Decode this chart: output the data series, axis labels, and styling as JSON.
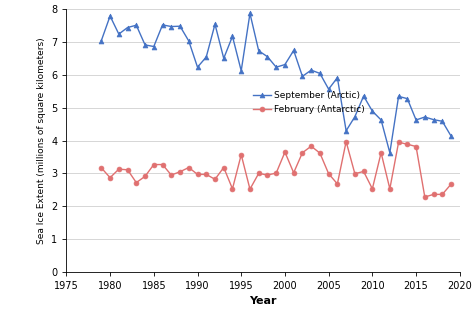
{
  "arctic_years": [
    1979,
    1980,
    1981,
    1982,
    1983,
    1984,
    1985,
    1986,
    1987,
    1988,
    1989,
    1990,
    1991,
    1992,
    1993,
    1994,
    1995,
    1996,
    1997,
    1998,
    1999,
    2000,
    2001,
    2002,
    2003,
    2004,
    2005,
    2006,
    2007,
    2008,
    2009,
    2010,
    2011,
    2012,
    2013,
    2014,
    2015,
    2016,
    2017,
    2018,
    2019
  ],
  "arctic_values": [
    7.05,
    7.8,
    7.25,
    7.45,
    7.52,
    6.92,
    6.87,
    7.53,
    7.48,
    7.49,
    7.04,
    6.24,
    6.55,
    7.55,
    6.51,
    7.18,
    6.13,
    7.88,
    6.74,
    6.56,
    6.24,
    6.32,
    6.75,
    5.96,
    6.15,
    6.05,
    5.57,
    5.92,
    4.3,
    4.73,
    5.36,
    4.9,
    4.63,
    3.63,
    5.35,
    5.28,
    4.63,
    4.72,
    4.64,
    4.59,
    4.14
  ],
  "antarctic_years": [
    1979,
    1980,
    1981,
    1982,
    1983,
    1984,
    1985,
    1986,
    1987,
    1988,
    1989,
    1990,
    1991,
    1992,
    1993,
    1994,
    1995,
    1996,
    1997,
    1998,
    1999,
    2000,
    2001,
    2002,
    2003,
    2004,
    2005,
    2006,
    2007,
    2008,
    2009,
    2010,
    2011,
    2012,
    2013,
    2014,
    2015,
    2016,
    2017,
    2018,
    2019
  ],
  "antarctic_values": [
    3.17,
    2.87,
    3.13,
    3.11,
    2.72,
    2.91,
    3.27,
    3.27,
    2.95,
    3.05,
    3.18,
    2.97,
    2.97,
    2.82,
    3.18,
    2.53,
    3.57,
    2.52,
    3.0,
    2.95,
    3.01,
    3.65,
    3.02,
    3.63,
    3.83,
    3.62,
    2.99,
    2.68,
    3.97,
    2.99,
    3.06,
    2.53,
    3.63,
    2.53,
    3.95,
    3.89,
    3.82,
    2.28,
    2.36,
    2.36,
    2.67
  ],
  "arctic_color": "#4472c4",
  "antarctic_color": "#e07070",
  "arctic_label": "September (Arctic)",
  "antarctic_label": "February (Antarctic)",
  "xlabel": "Year",
  "ylabel": "Sea Ice Extent (millions of square kilometers)",
  "xlim": [
    1975,
    2020
  ],
  "ylim": [
    0,
    8
  ],
  "xticks": [
    1975,
    1980,
    1985,
    1990,
    1995,
    2000,
    2005,
    2010,
    2015,
    2020
  ],
  "yticks": [
    0,
    1,
    2,
    3,
    4,
    5,
    6,
    7,
    8
  ],
  "background_color": "#ffffff",
  "grid_color": "#d0d0d0"
}
